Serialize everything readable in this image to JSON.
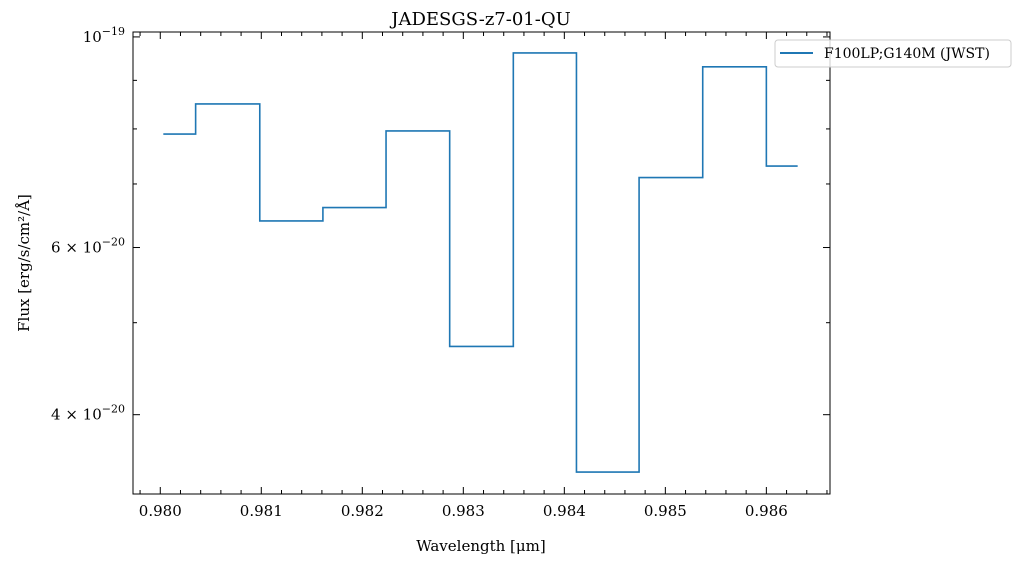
{
  "chart_data": {
    "type": "line",
    "drawstyle": "steps-mid",
    "title": "JADESGS-z7-01-QU",
    "xlabel": "Wavelength [μm]",
    "ylabel": "Flux [erg/s/cm²/Å]",
    "yscale": "log",
    "xlim": [
      0.97973,
      0.98663
    ],
    "ylim": [
      3.3e-20,
      1.012e-19
    ],
    "x_ticks": [
      0.98,
      0.981,
      0.982,
      0.983,
      0.984,
      0.985,
      0.986
    ],
    "x_tick_labels": [
      "0.980",
      "0.981",
      "0.982",
      "0.983",
      "0.984",
      "0.985",
      "0.986"
    ],
    "y_ticks": [
      {
        "value": 1e-19,
        "mant": "",
        "exp": "−19",
        "base": "10"
      },
      {
        "value": 6e-20,
        "mant": "6 × ",
        "exp": "−20",
        "base": "10"
      },
      {
        "value": 4e-20,
        "mant": "4 × ",
        "exp": "−20",
        "base": "10"
      }
    ],
    "y_minor_ticks": [
      5e-20,
      7e-20,
      8e-20,
      9e-20
    ],
    "grid": false,
    "legend_position": "top-right (outside)",
    "series": [
      {
        "name": "F100LP;G140M (JWST)",
        "color": "#1f77b4",
        "x": [
          0.98003,
          0.98067,
          0.9813,
          0.98192,
          0.98255,
          0.98318,
          0.98381,
          0.98443,
          0.98505,
          0.98569,
          0.98631
        ],
        "y": [
          7.9e-20,
          8.5e-20,
          6.4e-20,
          6.61e-20,
          7.96e-20,
          4.72e-20,
          9.62e-20,
          3.48e-20,
          7.11e-20,
          9.3e-20,
          7.31e-20
        ]
      }
    ]
  }
}
